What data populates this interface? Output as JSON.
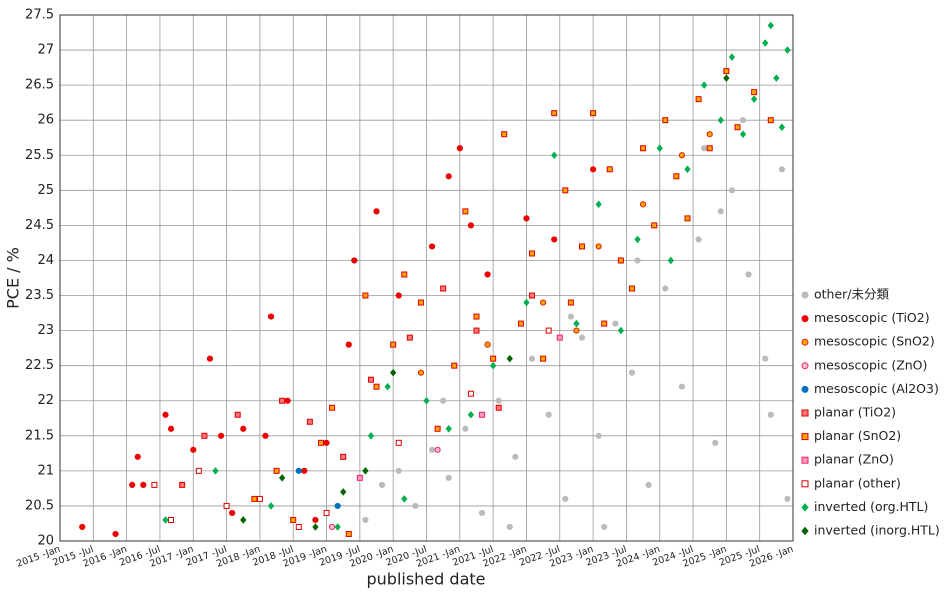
{
  "chart_data": {
    "type": "scatter",
    "x_label": "published date",
    "y_label": "PCE / %",
    "xlim": [
      "2015-01",
      "2026-01"
    ],
    "xticks": [
      {
        "value": "2015-01",
        "label": "2015 -Jan"
      },
      {
        "value": "2015-07",
        "label": "2015 -Jul"
      },
      {
        "value": "2016-01",
        "label": "2016 -Jan"
      },
      {
        "value": "2016-07",
        "label": "2016 -Jul"
      },
      {
        "value": "2017-01",
        "label": "2017 -Jan"
      },
      {
        "value": "2017-07",
        "label": "2017 -Jul"
      },
      {
        "value": "2018-01",
        "label": "2018 -Jan"
      },
      {
        "value": "2018-07",
        "label": "2018 -Jul"
      },
      {
        "value": "2019-01",
        "label": "2019 -Jan"
      },
      {
        "value": "2019-07",
        "label": "2019 -Jul"
      },
      {
        "value": "2020-01",
        "label": "2020 -Jan"
      },
      {
        "value": "2020-07",
        "label": "2020 -Jul"
      },
      {
        "value": "2021-01",
        "label": "2021 -Jan"
      },
      {
        "value": "2021-07",
        "label": "2021 -Jul"
      },
      {
        "value": "2022-01",
        "label": "2022 -Jan"
      },
      {
        "value": "2022-07",
        "label": "2022 -Jul"
      },
      {
        "value": "2023-01",
        "label": "2023 -Jan"
      },
      {
        "value": "2023-07",
        "label": "2023 -Jul"
      },
      {
        "value": "2024-01",
        "label": "2024 -Jan"
      },
      {
        "value": "2024-07",
        "label": "2024 -Jul"
      },
      {
        "value": "2025-01",
        "label": "2025 -Jan"
      },
      {
        "value": "2025-07",
        "label": "2025 -Jul"
      },
      {
        "value": "2026-01",
        "label": "2026 -Jan"
      }
    ],
    "ylim": [
      20,
      27.5
    ],
    "yticks": [
      20,
      20.5,
      21,
      21.5,
      22,
      22.5,
      23,
      23.5,
      24,
      24.5,
      25,
      25.5,
      26,
      26.5,
      27,
      27.5
    ],
    "grid": true,
    "legend": "right",
    "series": [
      {
        "name": "other/未分類",
        "color": "#bbbbbb",
        "edgecolor": "#bbbbbb",
        "marker": "circle",
        "x": [
          "2019-08",
          "2019-11",
          "2020-02",
          "2020-05",
          "2020-08",
          "2020-11",
          "2021-02",
          "2021-05",
          "2021-08",
          "2021-11",
          "2022-02",
          "2022-05",
          "2022-08",
          "2022-11",
          "2023-02",
          "2023-05",
          "2023-08",
          "2023-11",
          "2024-02",
          "2024-05",
          "2024-08",
          "2024-11",
          "2025-02",
          "2025-05",
          "2025-08",
          "2025-11",
          "2025-12",
          "2024-09",
          "2023-09",
          "2022-09",
          "2021-10",
          "2020-10",
          "2025-04",
          "2024-12",
          "2025-09",
          "2023-03"
        ],
        "values": [
          20.3,
          20.8,
          21.0,
          20.5,
          21.3,
          20.9,
          21.6,
          20.4,
          22.0,
          21.2,
          22.6,
          21.8,
          20.6,
          22.9,
          21.5,
          23.1,
          22.4,
          20.8,
          23.6,
          22.2,
          24.3,
          21.4,
          25.0,
          23.8,
          22.6,
          25.3,
          20.6,
          25.6,
          24.0,
          23.2,
          20.2,
          22.0,
          26.0,
          24.7,
          21.8,
          20.2
        ]
      },
      {
        "name": "mesoscopic (TiO2)",
        "color": "#ee0000",
        "edgecolor": "#ee0000",
        "marker": "circle",
        "x": [
          "2015-05",
          "2015-11",
          "2016-02",
          "2016-03",
          "2016-04",
          "2016-08",
          "2016-09",
          "2017-01",
          "2017-04",
          "2017-06",
          "2017-10",
          "2018-03",
          "2018-02",
          "2018-06",
          "2018-09",
          "2019-01",
          "2019-05",
          "2019-06",
          "2019-10",
          "2020-02",
          "2020-08",
          "2020-11",
          "2021-01",
          "2021-03",
          "2021-06",
          "2022-01",
          "2022-06",
          "2023-01",
          "2023-06",
          "2018-11",
          "2017-08"
        ],
        "values": [
          20.2,
          20.1,
          20.8,
          21.2,
          20.8,
          21.8,
          21.6,
          21.3,
          22.6,
          21.5,
          21.6,
          23.2,
          21.5,
          22.0,
          21.0,
          21.4,
          22.8,
          24.0,
          24.7,
          23.5,
          24.2,
          25.2,
          25.6,
          24.5,
          23.8,
          24.6,
          24.3,
          25.3,
          24.0,
          20.3,
          20.4
        ]
      },
      {
        "name": "mesoscopic (SnO2)",
        "color": "#ffa500",
        "edgecolor": "#dd2200",
        "marker": "circle",
        "x": [
          "2021-06",
          "2022-04",
          "2023-02",
          "2023-10",
          "2024-05",
          "2022-10",
          "2020-06",
          "2024-10"
        ],
        "values": [
          22.8,
          23.4,
          24.2,
          24.8,
          25.5,
          23.0,
          22.4,
          25.8
        ]
      },
      {
        "name": "mesoscopic (ZnO)",
        "color": "#ffc0cb",
        "edgecolor": "#ee2266",
        "marker": "circle",
        "x": [
          "2019-02",
          "2020-09"
        ],
        "values": [
          20.2,
          21.3
        ]
      },
      {
        "name": "mesoscopic (Al2O3)",
        "color": "#0070c0",
        "edgecolor": "#0070c0",
        "marker": "circle",
        "x": [
          "2018-08",
          "2019-03"
        ],
        "values": [
          21.0,
          20.5
        ]
      },
      {
        "name": "planar (TiO2)",
        "color": "#ff7777",
        "edgecolor": "#dd0000",
        "marker": "square",
        "x": [
          "2016-11",
          "2017-03",
          "2017-09",
          "2018-05",
          "2018-10",
          "2019-04",
          "2019-09",
          "2020-04",
          "2020-10",
          "2021-04",
          "2021-08",
          "2022-02"
        ],
        "values": [
          20.8,
          21.5,
          21.8,
          22.0,
          21.7,
          21.2,
          22.3,
          22.9,
          23.6,
          23.0,
          21.9,
          23.5
        ]
      },
      {
        "name": "planar (SnO2)",
        "color": "#ffa500",
        "edgecolor": "#dd0000",
        "marker": "square",
        "x": [
          "2017-12",
          "2018-04",
          "2018-07",
          "2018-12",
          "2019-02",
          "2019-05",
          "2019-08",
          "2019-10",
          "2020-01",
          "2020-03",
          "2020-06",
          "2020-09",
          "2020-12",
          "2021-02",
          "2021-04",
          "2021-07",
          "2021-09",
          "2021-12",
          "2022-02",
          "2022-04",
          "2022-06",
          "2022-08",
          "2022-09",
          "2022-11",
          "2023-01",
          "2023-03",
          "2023-04",
          "2023-06",
          "2023-08",
          "2023-10",
          "2023-12",
          "2024-02",
          "2024-04",
          "2024-06",
          "2024-08",
          "2024-10",
          "2025-01",
          "2025-03",
          "2025-06",
          "2025-09"
        ],
        "values": [
          20.6,
          21.0,
          20.3,
          21.4,
          21.9,
          20.1,
          23.5,
          22.2,
          22.8,
          23.8,
          23.4,
          21.6,
          22.5,
          24.7,
          23.2,
          22.6,
          25.8,
          23.1,
          24.1,
          22.6,
          26.1,
          25.0,
          23.4,
          24.2,
          26.1,
          23.1,
          25.3,
          24.0,
          23.6,
          25.6,
          24.5,
          26.0,
          25.2,
          24.6,
          26.3,
          25.6,
          26.7,
          25.9,
          26.4,
          26.0
        ]
      },
      {
        "name": "planar (ZnO)",
        "color": "#ff99bb",
        "edgecolor": "#ee2266",
        "marker": "square",
        "x": [
          "2019-07",
          "2021-05",
          "2022-07"
        ],
        "values": [
          20.9,
          21.8,
          22.9
        ]
      },
      {
        "name": "planar (other)",
        "color": "#ffffff",
        "edgecolor": "#dd0000",
        "marker": "square",
        "x": [
          "2016-06",
          "2016-09",
          "2017-02",
          "2017-07",
          "2018-01",
          "2018-08",
          "2019-01",
          "2020-02",
          "2021-03",
          "2022-05"
        ],
        "values": [
          20.8,
          20.3,
          21.0,
          20.5,
          20.6,
          20.2,
          20.4,
          21.4,
          22.1,
          23.0
        ]
      },
      {
        "name": "inverted (org.HTL)",
        "color": "#00b050",
        "edgecolor": "#00b050",
        "marker": "diamond",
        "x": [
          "2016-08",
          "2017-05",
          "2018-03",
          "2019-03",
          "2019-09",
          "2019-12",
          "2020-03",
          "2020-07",
          "2020-11",
          "2021-03",
          "2021-07",
          "2022-01",
          "2022-06",
          "2022-10",
          "2023-02",
          "2023-06",
          "2023-09",
          "2024-01",
          "2024-03",
          "2024-06",
          "2024-09",
          "2024-12",
          "2025-02",
          "2025-04",
          "2025-06",
          "2025-08",
          "2025-09",
          "2025-10",
          "2025-11",
          "2025-12"
        ],
        "values": [
          20.3,
          21.0,
          20.5,
          20.2,
          21.5,
          22.2,
          20.6,
          22.0,
          21.6,
          21.8,
          22.5,
          23.4,
          25.5,
          23.1,
          24.8,
          23.0,
          24.3,
          25.6,
          24.0,
          25.3,
          26.5,
          26.0,
          26.9,
          25.8,
          26.3,
          27.1,
          27.35,
          26.6,
          25.9,
          27.0
        ]
      },
      {
        "name": "inverted (inorg.HTL)",
        "color": "#006400",
        "edgecolor": "#006400",
        "marker": "diamond",
        "x": [
          "2017-10",
          "2018-05",
          "2018-11",
          "2019-04",
          "2019-08",
          "2020-01",
          "2021-10",
          "2025-01"
        ],
        "values": [
          20.3,
          20.9,
          20.2,
          20.7,
          21.0,
          22.4,
          22.6,
          26.6
        ]
      }
    ]
  }
}
